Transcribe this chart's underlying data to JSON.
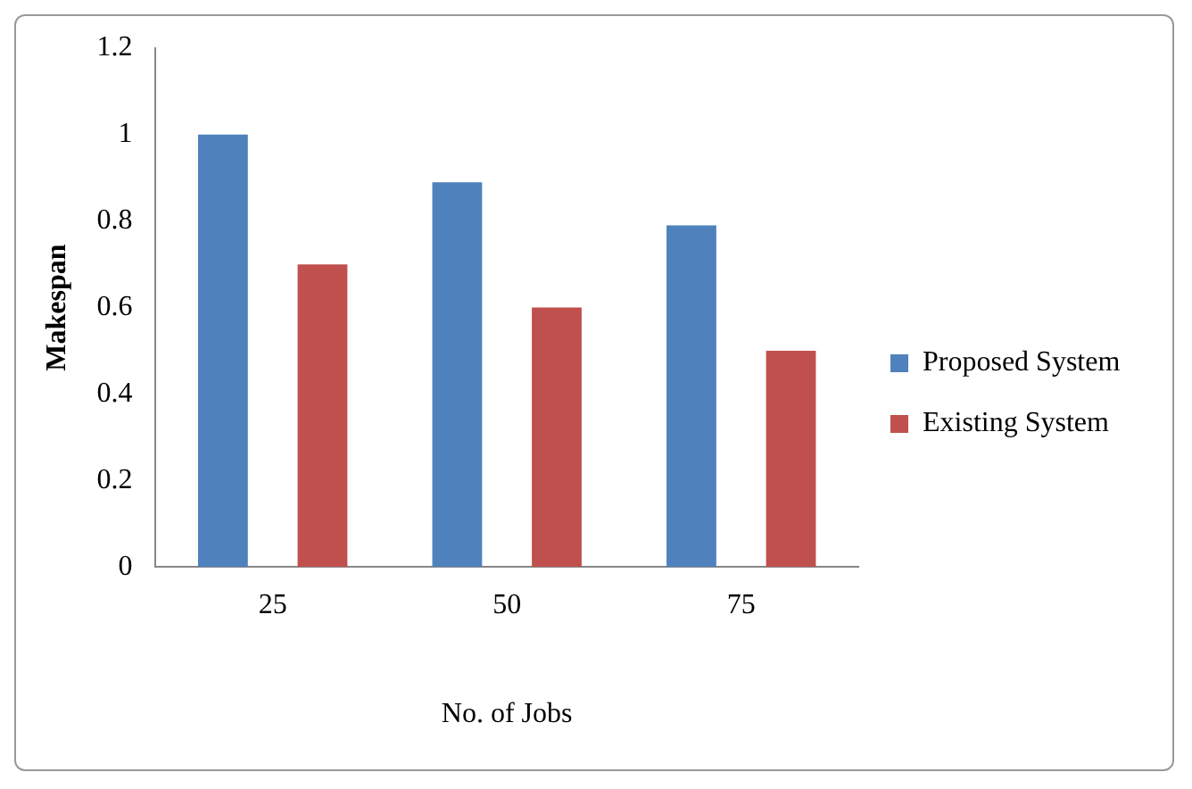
{
  "chart_data": {
    "type": "bar",
    "xlabel": "No. of Jobs",
    "ylabel": "Makespan",
    "categories": [
      "25",
      "50",
      "75"
    ],
    "series": [
      {
        "name": "Proposed System",
        "color": "#4f81bd",
        "values": [
          1.0,
          0.89,
          0.79
        ]
      },
      {
        "name": "Existing System",
        "color": "#c0504d",
        "values": [
          0.7,
          0.6,
          0.5
        ]
      }
    ],
    "ylim": [
      0,
      1.2
    ],
    "yticks": [
      0,
      0.2,
      0.4,
      0.6,
      0.8,
      1,
      1.2
    ],
    "grid": false,
    "legend": "right"
  }
}
